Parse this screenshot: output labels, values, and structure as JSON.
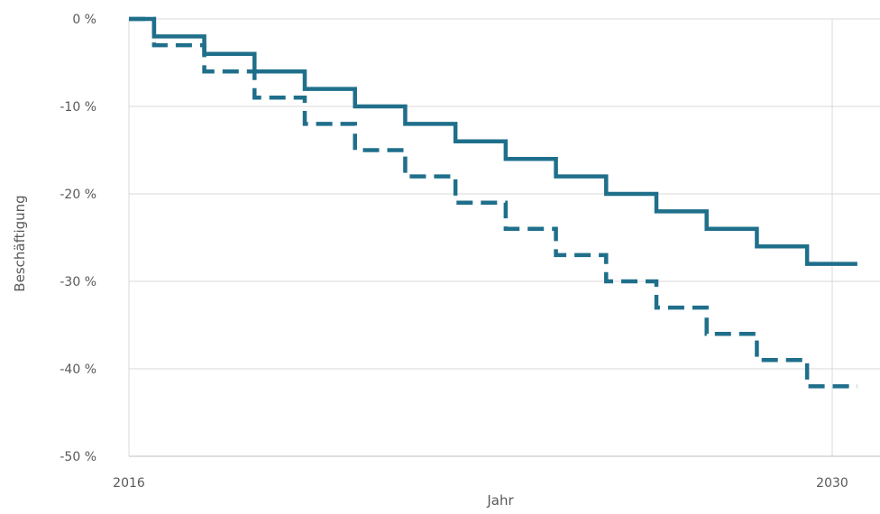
{
  "chart_data": {
    "type": "line",
    "step": true,
    "title": "",
    "xlabel": "Jahr",
    "ylabel": "Beschäftigung",
    "xlim": [
      2016,
      2030.5
    ],
    "ylim": [
      -50,
      0
    ],
    "x_ticks": [
      2016,
      2030
    ],
    "y_ticks": [
      0,
      -10,
      -20,
      -30,
      -40,
      -50
    ],
    "y_tick_labels": [
      "0 %",
      "-10 %",
      "-20 %",
      "-30 %",
      "-40 %",
      "-50 %"
    ],
    "grid": "horizontal and vertical",
    "legend": "none",
    "color": "#1f6f8b",
    "x": [
      2016,
      2016.5,
      2017.5,
      2018.5,
      2019.5,
      2020.5,
      2021.5,
      2022.5,
      2023.5,
      2024.5,
      2025.5,
      2026.5,
      2027.5,
      2028.5,
      2029.5,
      2030.5
    ],
    "series": [
      {
        "style": "solid",
        "values": [
          0,
          -2,
          -4,
          -6,
          -8,
          -10,
          -12,
          -14,
          -16,
          -18,
          -20,
          -22,
          -24,
          -26,
          -28,
          -28
        ]
      },
      {
        "style": "dashed",
        "values": [
          0,
          -3,
          -6,
          -9,
          -12,
          -15,
          -18,
          -21,
          -24,
          -27,
          -30,
          -33,
          -36,
          -39,
          -42,
          -42
        ]
      }
    ]
  }
}
